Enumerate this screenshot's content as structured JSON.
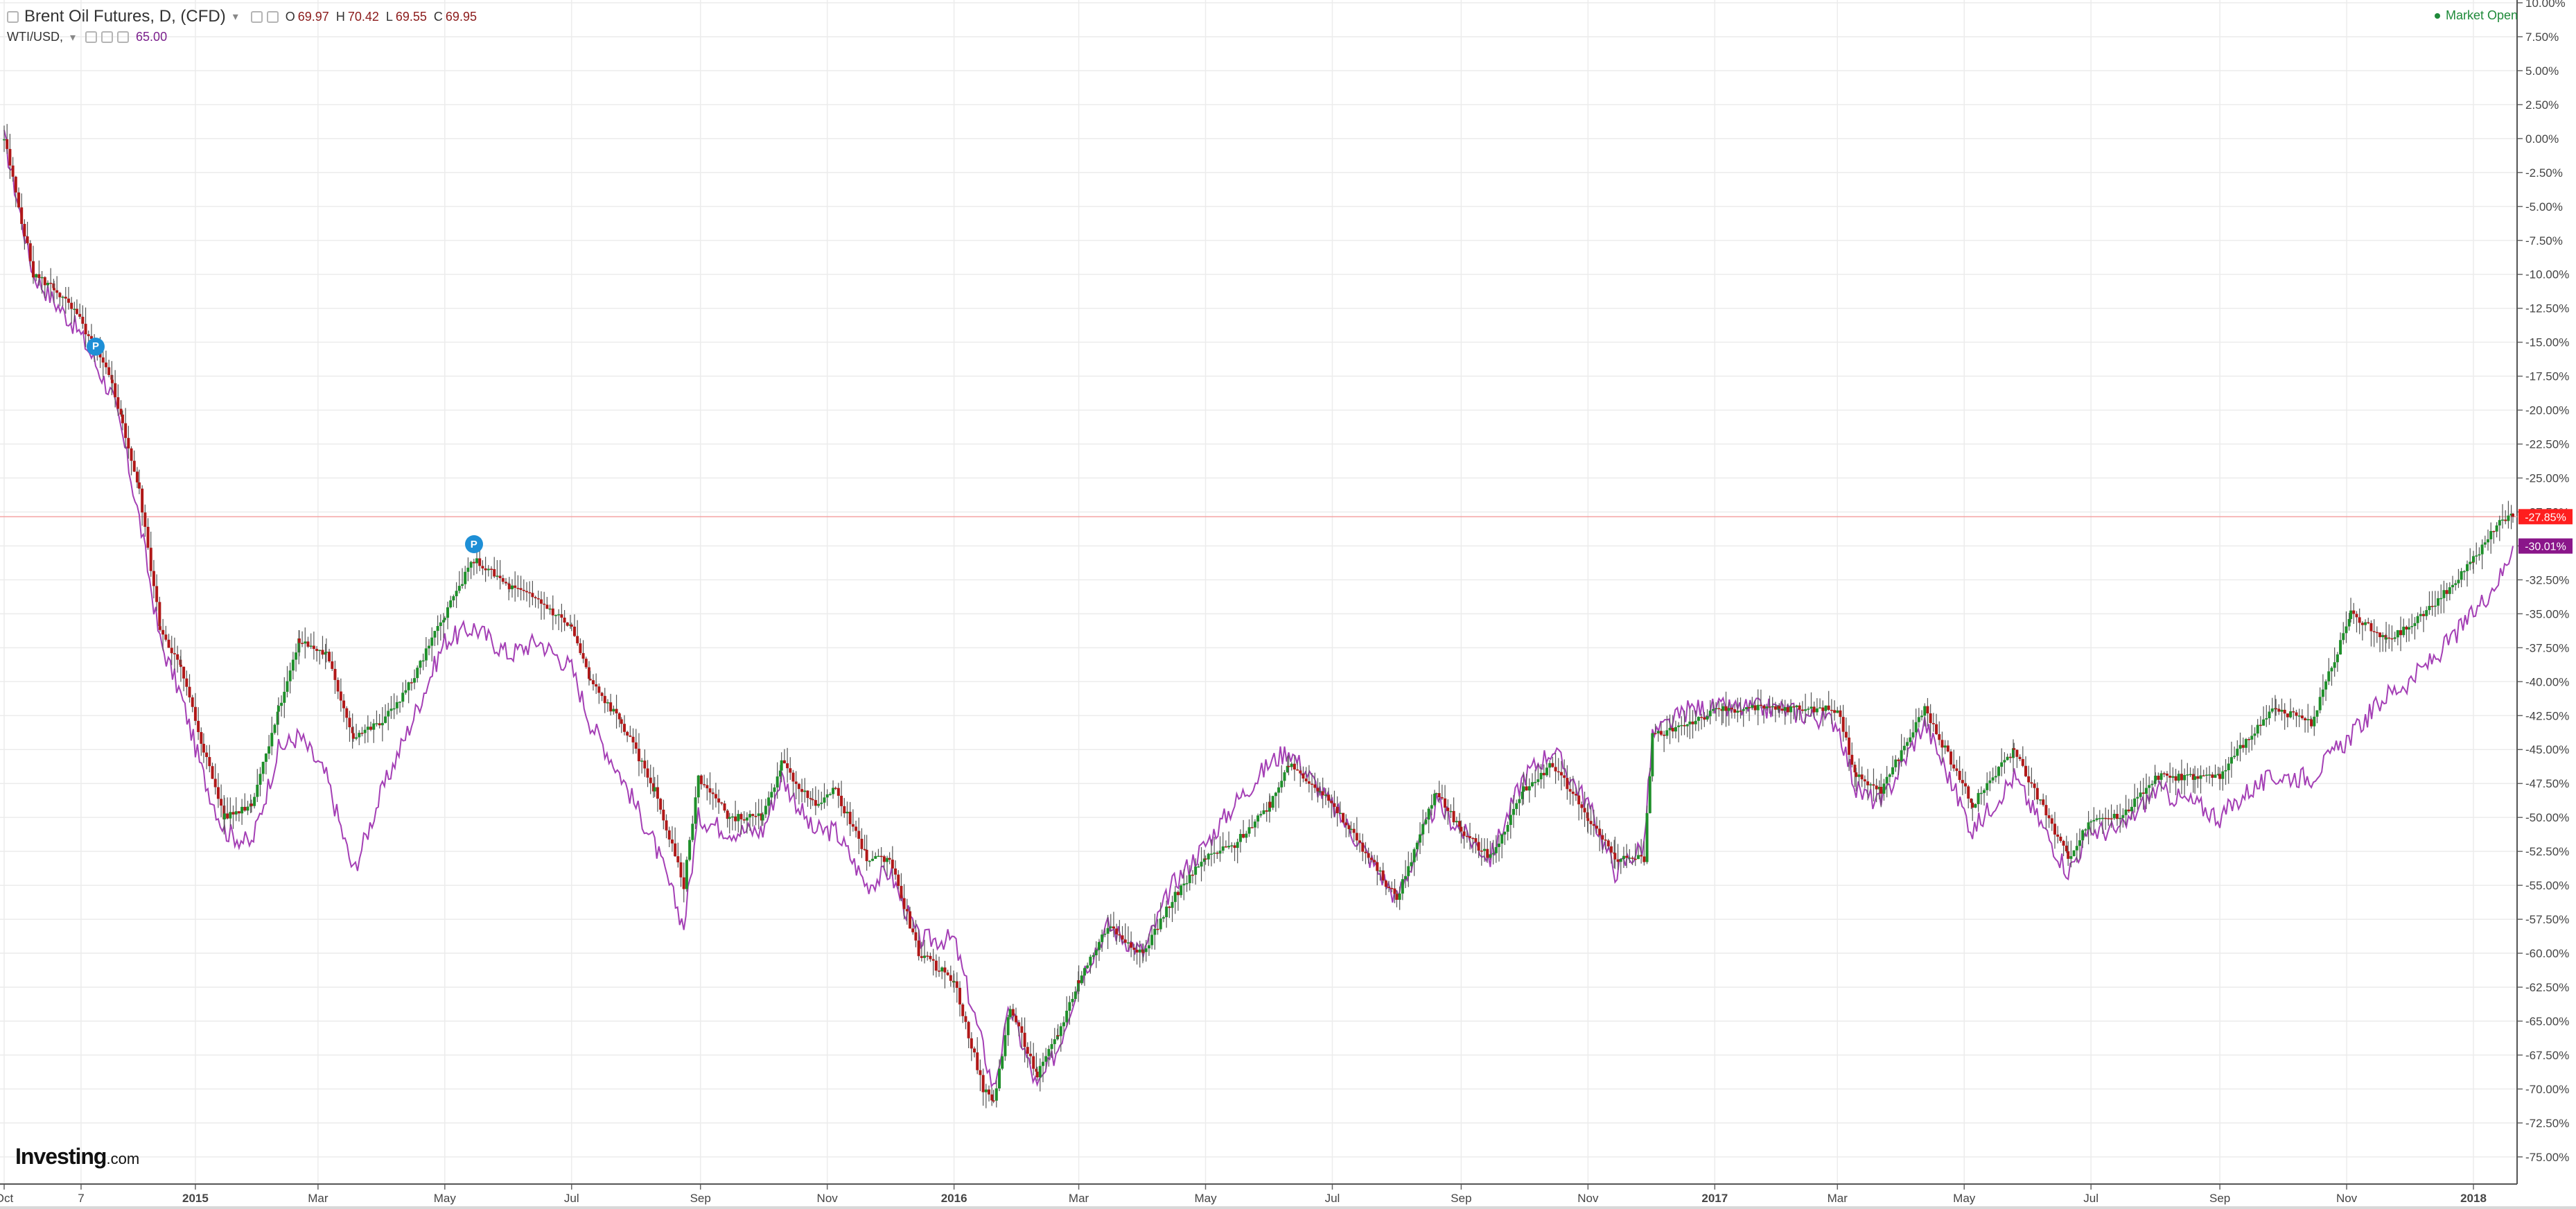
{
  "header": {
    "title": "Brent Oil Futures, D, (CFD)",
    "ohlc": [
      {
        "label": "O",
        "value": "69.97"
      },
      {
        "label": "H",
        "value": "70.42"
      },
      {
        "label": "L",
        "value": "69.55"
      },
      {
        "label": "C",
        "value": "69.95"
      }
    ],
    "compare_symbol": "WTI/USD,",
    "compare_value": "65.00"
  },
  "market_status": "Market Open",
  "logo": {
    "main": "Investing",
    "domain": ".com"
  },
  "colors": {
    "up": "#1e8f2a",
    "down": "#b01818",
    "wick": "#555555",
    "compare_line": "#a43fb5",
    "last_brent": "#ff1e1e",
    "last_wti": "#8a168a",
    "grid": "#ececec"
  },
  "chart_data": {
    "type": "candlestick+line",
    "y_axis": {
      "unit": "%",
      "range": [
        -77,
        10
      ],
      "ticks": [
        "10.00%",
        "7.50%",
        "5.00%",
        "2.50%",
        "0.00%",
        "-2.50%",
        "-5.00%",
        "-7.50%",
        "-10.00%",
        "-12.50%",
        "-15.00%",
        "-17.50%",
        "-20.00%",
        "-22.50%",
        "-25.00%",
        "-27.50%",
        "-30.00%",
        "-32.50%",
        "-35.00%",
        "-37.50%",
        "-40.00%",
        "-42.50%",
        "-45.00%",
        "-47.50%",
        "-50.00%",
        "-52.50%",
        "-55.00%",
        "-57.50%",
        "-60.00%",
        "-62.50%",
        "-65.00%",
        "-67.50%",
        "-70.00%",
        "-72.50%",
        "-75.00%"
      ],
      "tick_values": [
        10,
        7.5,
        5,
        2.5,
        0,
        -2.5,
        -5,
        -7.5,
        -10,
        -12.5,
        -15,
        -17.5,
        -20,
        -22.5,
        -25,
        -27.5,
        -30,
        -32.5,
        -35,
        -37.5,
        -40,
        -42.5,
        -45,
        -47.5,
        -50,
        -52.5,
        -55,
        -57.5,
        -60,
        -62.5,
        -65,
        -67.5,
        -70,
        -72.5,
        -75
      ],
      "position": "right"
    },
    "x_axis": {
      "range": [
        "2014-09-29",
        "2018-01-22"
      ],
      "ticks": [
        {
          "label": "Oct",
          "date": "2014-10-01"
        },
        {
          "label": "7",
          "date": "2014-11-07"
        },
        {
          "label": "2015",
          "date": "2015-01-01"
        },
        {
          "label": "Mar",
          "date": "2015-03-01"
        },
        {
          "label": "May",
          "date": "2015-05-01"
        },
        {
          "label": "Jul",
          "date": "2015-07-01"
        },
        {
          "label": "Sep",
          "date": "2015-09-01"
        },
        {
          "label": "Nov",
          "date": "2015-11-01"
        },
        {
          "label": "2016",
          "date": "2016-01-01"
        },
        {
          "label": "Mar",
          "date": "2016-03-01"
        },
        {
          "label": "May",
          "date": "2016-05-01"
        },
        {
          "label": "Jul",
          "date": "2016-07-01"
        },
        {
          "label": "Sep",
          "date": "2016-09-01"
        },
        {
          "label": "Nov",
          "date": "2016-11-01"
        },
        {
          "label": "2017",
          "date": "2017-01-01"
        },
        {
          "label": "Mar",
          "date": "2017-03-01"
        },
        {
          "label": "May",
          "date": "2017-05-01"
        },
        {
          "label": "Jul",
          "date": "2017-07-01"
        },
        {
          "label": "Sep",
          "date": "2017-09-01"
        },
        {
          "label": "Nov",
          "date": "2017-11-01"
        },
        {
          "label": "2018",
          "date": "2018-01-01"
        }
      ]
    },
    "grid": true,
    "series": [
      {
        "name": "Brent Oil Futures",
        "style": "candles",
        "last_value_label": "-27.85%",
        "last_value": -27.85,
        "points": [
          {
            "date": "2014-10-01",
            "value": 0
          },
          {
            "date": "2014-10-15",
            "value": -10
          },
          {
            "date": "2014-10-25",
            "value": -11
          },
          {
            "date": "2014-11-05",
            "value": -13
          },
          {
            "date": "2014-11-12",
            "value": -15
          },
          {
            "date": "2014-11-22",
            "value": -18
          },
          {
            "date": "2014-11-27",
            "value": -21
          },
          {
            "date": "2014-12-05",
            "value": -26
          },
          {
            "date": "2014-12-15",
            "value": -36
          },
          {
            "date": "2014-12-25",
            "value": -39
          },
          {
            "date": "2015-01-05",
            "value": -45
          },
          {
            "date": "2015-01-15",
            "value": -50
          },
          {
            "date": "2015-01-28",
            "value": -49
          },
          {
            "date": "2015-02-10",
            "value": -42
          },
          {
            "date": "2015-02-20",
            "value": -37
          },
          {
            "date": "2015-03-05",
            "value": -38
          },
          {
            "date": "2015-03-18",
            "value": -44
          },
          {
            "date": "2015-04-01",
            "value": -43
          },
          {
            "date": "2015-04-15",
            "value": -40
          },
          {
            "date": "2015-05-01",
            "value": -35
          },
          {
            "date": "2015-05-15",
            "value": -31
          },
          {
            "date": "2015-06-01",
            "value": -33
          },
          {
            "date": "2015-06-15",
            "value": -34
          },
          {
            "date": "2015-07-01",
            "value": -36
          },
          {
            "date": "2015-07-10",
            "value": -40
          },
          {
            "date": "2015-07-25",
            "value": -43
          },
          {
            "date": "2015-08-10",
            "value": -48
          },
          {
            "date": "2015-08-24",
            "value": -55
          },
          {
            "date": "2015-08-31",
            "value": -47
          },
          {
            "date": "2015-09-15",
            "value": -50
          },
          {
            "date": "2015-10-01",
            "value": -50
          },
          {
            "date": "2015-10-10",
            "value": -46
          },
          {
            "date": "2015-10-25",
            "value": -49
          },
          {
            "date": "2015-11-05",
            "value": -48
          },
          {
            "date": "2015-11-20",
            "value": -53
          },
          {
            "date": "2015-12-01",
            "value": -53
          },
          {
            "date": "2015-12-15",
            "value": -60
          },
          {
            "date": "2016-01-01",
            "value": -62
          },
          {
            "date": "2016-01-15",
            "value": -70
          },
          {
            "date": "2016-01-20",
            "value": -71
          },
          {
            "date": "2016-01-28",
            "value": -64
          },
          {
            "date": "2016-02-10",
            "value": -69
          },
          {
            "date": "2016-02-20",
            "value": -66
          },
          {
            "date": "2016-03-01",
            "value": -62
          },
          {
            "date": "2016-03-15",
            "value": -58
          },
          {
            "date": "2016-04-01",
            "value": -60
          },
          {
            "date": "2016-04-15",
            "value": -56
          },
          {
            "date": "2016-05-01",
            "value": -53
          },
          {
            "date": "2016-05-15",
            "value": -52
          },
          {
            "date": "2016-06-01",
            "value": -49
          },
          {
            "date": "2016-06-10",
            "value": -46
          },
          {
            "date": "2016-06-25",
            "value": -48
          },
          {
            "date": "2016-07-10",
            "value": -51
          },
          {
            "date": "2016-08-01",
            "value": -56
          },
          {
            "date": "2016-08-20",
            "value": -48
          },
          {
            "date": "2016-09-01",
            "value": -51
          },
          {
            "date": "2016-09-15",
            "value": -53
          },
          {
            "date": "2016-10-01",
            "value": -48
          },
          {
            "date": "2016-10-15",
            "value": -46
          },
          {
            "date": "2016-11-01",
            "value": -50
          },
          {
            "date": "2016-11-14",
            "value": -53
          },
          {
            "date": "2016-11-28",
            "value": -53
          },
          {
            "date": "2016-12-02",
            "value": -44
          },
          {
            "date": "2016-12-20",
            "value": -43
          },
          {
            "date": "2017-01-05",
            "value": -42
          },
          {
            "date": "2017-02-01",
            "value": -42
          },
          {
            "date": "2017-03-01",
            "value": -42
          },
          {
            "date": "2017-03-10",
            "value": -47
          },
          {
            "date": "2017-03-22",
            "value": -48
          },
          {
            "date": "2017-04-12",
            "value": -42
          },
          {
            "date": "2017-05-05",
            "value": -49
          },
          {
            "date": "2017-05-25",
            "value": -45
          },
          {
            "date": "2017-06-20",
            "value": -53
          },
          {
            "date": "2017-07-01",
            "value": -50
          },
          {
            "date": "2017-07-15",
            "value": -50
          },
          {
            "date": "2017-08-01",
            "value": -47
          },
          {
            "date": "2017-08-20",
            "value": -47
          },
          {
            "date": "2017-09-01",
            "value": -47
          },
          {
            "date": "2017-09-15",
            "value": -44
          },
          {
            "date": "2017-09-28",
            "value": -42
          },
          {
            "date": "2017-10-15",
            "value": -43
          },
          {
            "date": "2017-11-03",
            "value": -35
          },
          {
            "date": "2017-11-20",
            "value": -37
          },
          {
            "date": "2017-12-01",
            "value": -36
          },
          {
            "date": "2017-12-15",
            "value": -34
          },
          {
            "date": "2018-01-01",
            "value": -31
          },
          {
            "date": "2018-01-15",
            "value": -28
          },
          {
            "date": "2018-01-20",
            "value": -27.85
          }
        ]
      },
      {
        "name": "WTI/USD",
        "style": "line",
        "last_value_label": "-30.01%",
        "last_value": -30.01,
        "points": [
          {
            "date": "2014-10-01",
            "value": 0
          },
          {
            "date": "2014-10-15",
            "value": -10
          },
          {
            "date": "2014-10-25",
            "value": -12
          },
          {
            "date": "2014-11-05",
            "value": -14
          },
          {
            "date": "2014-11-12",
            "value": -16
          },
          {
            "date": "2014-11-22",
            "value": -19
          },
          {
            "date": "2014-11-27",
            "value": -22
          },
          {
            "date": "2014-12-05",
            "value": -28
          },
          {
            "date": "2014-12-15",
            "value": -37
          },
          {
            "date": "2014-12-25",
            "value": -41
          },
          {
            "date": "2015-01-05",
            "value": -47
          },
          {
            "date": "2015-01-15",
            "value": -51
          },
          {
            "date": "2015-01-28",
            "value": -52
          },
          {
            "date": "2015-02-10",
            "value": -45
          },
          {
            "date": "2015-02-20",
            "value": -44
          },
          {
            "date": "2015-03-05",
            "value": -47
          },
          {
            "date": "2015-03-18",
            "value": -54
          },
          {
            "date": "2015-04-01",
            "value": -48
          },
          {
            "date": "2015-04-15",
            "value": -43
          },
          {
            "date": "2015-05-01",
            "value": -37
          },
          {
            "date": "2015-05-15",
            "value": -36
          },
          {
            "date": "2015-06-01",
            "value": -38
          },
          {
            "date": "2015-06-15",
            "value": -37
          },
          {
            "date": "2015-07-01",
            "value": -39
          },
          {
            "date": "2015-07-10",
            "value": -43
          },
          {
            "date": "2015-07-25",
            "value": -47
          },
          {
            "date": "2015-08-10",
            "value": -52
          },
          {
            "date": "2015-08-24",
            "value": -58
          },
          {
            "date": "2015-08-31",
            "value": -50
          },
          {
            "date": "2015-09-15",
            "value": -51
          },
          {
            "date": "2015-10-01",
            "value": -51
          },
          {
            "date": "2015-10-10",
            "value": -47
          },
          {
            "date": "2015-10-25",
            "value": -51
          },
          {
            "date": "2015-11-05",
            "value": -51
          },
          {
            "date": "2015-11-20",
            "value": -55
          },
          {
            "date": "2015-12-01",
            "value": -54
          },
          {
            "date": "2015-12-15",
            "value": -59
          },
          {
            "date": "2016-01-01",
            "value": -59
          },
          {
            "date": "2016-01-15",
            "value": -67
          },
          {
            "date": "2016-01-20",
            "value": -70
          },
          {
            "date": "2016-01-28",
            "value": -64
          },
          {
            "date": "2016-02-10",
            "value": -70
          },
          {
            "date": "2016-02-20",
            "value": -67
          },
          {
            "date": "2016-03-01",
            "value": -62
          },
          {
            "date": "2016-03-15",
            "value": -58
          },
          {
            "date": "2016-04-01",
            "value": -60
          },
          {
            "date": "2016-04-15",
            "value": -55
          },
          {
            "date": "2016-05-01",
            "value": -52
          },
          {
            "date": "2016-05-15",
            "value": -49
          },
          {
            "date": "2016-06-01",
            "value": -46
          },
          {
            "date": "2016-06-10",
            "value": -45
          },
          {
            "date": "2016-06-25",
            "value": -48
          },
          {
            "date": "2016-07-10",
            "value": -51
          },
          {
            "date": "2016-08-01",
            "value": -56
          },
          {
            "date": "2016-08-20",
            "value": -49
          },
          {
            "date": "2016-09-01",
            "value": -51
          },
          {
            "date": "2016-09-15",
            "value": -53
          },
          {
            "date": "2016-10-01",
            "value": -47
          },
          {
            "date": "2016-10-15",
            "value": -45
          },
          {
            "date": "2016-11-01",
            "value": -49
          },
          {
            "date": "2016-11-14",
            "value": -54
          },
          {
            "date": "2016-11-28",
            "value": -52
          },
          {
            "date": "2016-12-02",
            "value": -44
          },
          {
            "date": "2016-12-20",
            "value": -42
          },
          {
            "date": "2017-01-05",
            "value": -42
          },
          {
            "date": "2017-02-01",
            "value": -42
          },
          {
            "date": "2017-03-01",
            "value": -43
          },
          {
            "date": "2017-03-10",
            "value": -48
          },
          {
            "date": "2017-03-22",
            "value": -49
          },
          {
            "date": "2017-04-12",
            "value": -43
          },
          {
            "date": "2017-05-05",
            "value": -51
          },
          {
            "date": "2017-05-25",
            "value": -47
          },
          {
            "date": "2017-06-20",
            "value": -54
          },
          {
            "date": "2017-07-01",
            "value": -51
          },
          {
            "date": "2017-07-15",
            "value": -51
          },
          {
            "date": "2017-08-01",
            "value": -48
          },
          {
            "date": "2017-08-20",
            "value": -49
          },
          {
            "date": "2017-09-01",
            "value": -50
          },
          {
            "date": "2017-09-15",
            "value": -48
          },
          {
            "date": "2017-09-28",
            "value": -47
          },
          {
            "date": "2017-10-15",
            "value": -47
          },
          {
            "date": "2017-11-03",
            "value": -44
          },
          {
            "date": "2017-11-20",
            "value": -41
          },
          {
            "date": "2017-12-01",
            "value": -40
          },
          {
            "date": "2017-12-15",
            "value": -38
          },
          {
            "date": "2018-01-01",
            "value": -35
          },
          {
            "date": "2018-01-15",
            "value": -32
          },
          {
            "date": "2018-01-20",
            "value": -30.01
          }
        ]
      }
    ],
    "markers": [
      {
        "label": "P",
        "date": "2014-11-14",
        "value": -15.3
      },
      {
        "label": "P",
        "date": "2015-05-15",
        "value": -29.9
      }
    ]
  }
}
